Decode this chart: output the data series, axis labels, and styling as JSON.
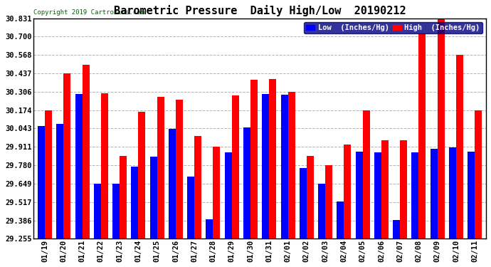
{
  "title": "Barometric Pressure  Daily High/Low  20190212",
  "copyright": "Copyright 2019 Cartronics.com",
  "legend_low": "Low  (Inches/Hg)",
  "legend_high": "High  (Inches/Hg)",
  "low_color": "#0000ff",
  "high_color": "#ff0000",
  "background_color": "#ffffff",
  "grid_color": "#aaaaaa",
  "ylim": [
    29.255,
    30.831
  ],
  "yticks": [
    29.255,
    29.386,
    29.517,
    29.649,
    29.78,
    29.911,
    30.043,
    30.174,
    30.306,
    30.437,
    30.568,
    30.7,
    30.831
  ],
  "dates": [
    "01/19",
    "01/20",
    "01/21",
    "01/22",
    "01/23",
    "01/24",
    "01/25",
    "01/26",
    "01/27",
    "01/28",
    "01/29",
    "01/30",
    "01/31",
    "02/01",
    "02/02",
    "02/03",
    "02/04",
    "02/05",
    "02/06",
    "02/07",
    "02/08",
    "02/09",
    "02/10",
    "02/11"
  ],
  "low_values": [
    30.06,
    30.075,
    30.29,
    29.648,
    29.65,
    29.77,
    29.84,
    30.04,
    29.7,
    29.395,
    29.87,
    30.05,
    30.29,
    30.285,
    29.76,
    29.65,
    29.52,
    29.88,
    29.87,
    29.39,
    29.87,
    29.9,
    29.91,
    29.875
  ],
  "high_values": [
    30.175,
    30.435,
    30.5,
    30.295,
    29.845,
    30.16,
    30.27,
    30.25,
    29.99,
    29.915,
    30.28,
    30.39,
    30.395,
    30.305,
    29.845,
    29.78,
    29.928,
    30.175,
    29.96,
    29.96,
    30.72,
    30.831,
    30.57,
    30.175
  ],
  "bar_width": 0.38,
  "title_fontsize": 11,
  "tick_fontsize": 7.5,
  "legend_fontsize": 7.5,
  "copyright_fontsize": 6.5
}
